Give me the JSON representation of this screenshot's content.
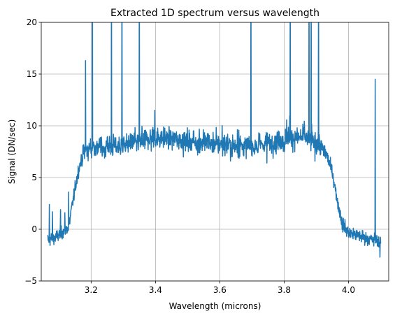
{
  "chart_data": {
    "type": "line",
    "title": "Extracted 1D spectrum versus wavelength",
    "xlabel": "Wavelength (microns)",
    "ylabel": "Signal (DN/sec)",
    "xlim": [
      3.045,
      4.125
    ],
    "ylim": [
      -5,
      20
    ],
    "xticks": [
      3.2,
      3.4,
      3.6,
      3.8,
      4.0
    ],
    "xtick_labels": [
      "3.2",
      "3.4",
      "3.6",
      "3.8",
      "4.0"
    ],
    "yticks": [
      -5,
      0,
      5,
      10,
      15,
      20
    ],
    "ytick_labels": [
      "−5",
      "0",
      "5",
      "10",
      "15",
      "20"
    ],
    "grid": true,
    "line_color": "#1f77b4",
    "series": [
      {
        "x_start": 3.065,
        "x_end": 4.1,
        "envelope": [
          [
            3.065,
            -1.0
          ],
          [
            3.09,
            -0.8
          ],
          [
            3.11,
            -0.3
          ],
          [
            3.13,
            0.2
          ],
          [
            3.145,
            3.0
          ],
          [
            3.16,
            5.6
          ],
          [
            3.175,
            7.4
          ],
          [
            3.2,
            7.9
          ],
          [
            3.3,
            8.1
          ],
          [
            3.4,
            8.9
          ],
          [
            3.5,
            8.6
          ],
          [
            3.6,
            8.2
          ],
          [
            3.7,
            8.0
          ],
          [
            3.8,
            8.7
          ],
          [
            3.86,
            8.9
          ],
          [
            3.9,
            8.4
          ],
          [
            3.93,
            7.4
          ],
          [
            3.95,
            5.5
          ],
          [
            3.965,
            2.8
          ],
          [
            3.98,
            0.6
          ],
          [
            4.0,
            -0.3
          ],
          [
            4.05,
            -0.8
          ],
          [
            4.1,
            -1.3
          ]
        ],
        "spikes": [
          [
            3.07,
            2.4
          ],
          [
            3.08,
            1.7
          ],
          [
            3.105,
            1.9
          ],
          [
            3.118,
            1.6
          ],
          [
            3.13,
            3.6
          ],
          [
            3.183,
            16.3
          ],
          [
            3.204,
            20.0
          ],
          [
            3.263,
            20.0
          ],
          [
            3.296,
            20.0
          ],
          [
            3.35,
            20.0
          ],
          [
            3.398,
            11.5
          ],
          [
            3.697,
            20.0
          ],
          [
            3.819,
            20.0
          ],
          [
            3.877,
            20.0
          ],
          [
            3.884,
            20.0
          ],
          [
            3.907,
            20.0
          ],
          [
            3.975,
            1.8
          ],
          [
            4.083,
            14.5
          ],
          [
            4.098,
            -2.7
          ]
        ]
      }
    ]
  }
}
